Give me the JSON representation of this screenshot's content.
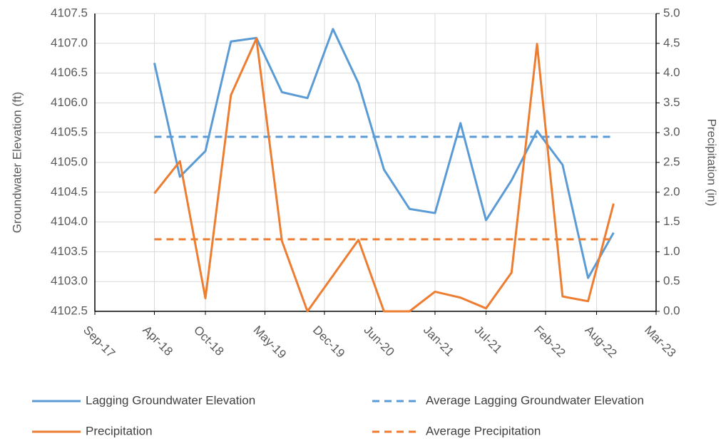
{
  "chart_data": {
    "type": "line",
    "y_label": "Groundwater Elevation (ft)",
    "y2_label": "Precipitation (in)",
    "x": [
      "2018-04",
      "2018-07",
      "2018-10",
      "2019-01",
      "2019-04",
      "2019-07",
      "2019-10",
      "2020-01",
      "2020-04",
      "2020-07",
      "2020-10",
      "2021-01",
      "2021-04",
      "2021-07",
      "2021-10",
      "2022-01",
      "2022-04",
      "2022-07",
      "2022-10"
    ],
    "xlim": [
      "2017-09",
      "2023-03"
    ],
    "xticks": [
      {
        "value": "2017-09",
        "label": "Sep-17"
      },
      {
        "value": "2018-04",
        "label": "Apr-18"
      },
      {
        "value": "2018-10",
        "label": "Oct-18"
      },
      {
        "value": "2019-05",
        "label": "May-19"
      },
      {
        "value": "2019-12",
        "label": "Dec-19"
      },
      {
        "value": "2020-06",
        "label": "Jun-20"
      },
      {
        "value": "2021-01",
        "label": "Jan-21"
      },
      {
        "value": "2021-07",
        "label": "Jul-21"
      },
      {
        "value": "2022-02",
        "label": "Feb-22"
      },
      {
        "value": "2022-08",
        "label": "Aug-22"
      },
      {
        "value": "2023-03",
        "label": "Mar-23"
      }
    ],
    "ylim": [
      4102.5,
      4107.5
    ],
    "yticks": [
      {
        "value": 4102.5,
        "label": "4102.5"
      },
      {
        "value": 4103,
        "label": "4103.0"
      },
      {
        "value": 4103.5,
        "label": "4103.5"
      },
      {
        "value": 4104,
        "label": "4104.0"
      },
      {
        "value": 4104.5,
        "label": "4104.5"
      },
      {
        "value": 4105,
        "label": "4105.0"
      },
      {
        "value": 4105.5,
        "label": "4105.5"
      },
      {
        "value": 4106,
        "label": "4106.0"
      },
      {
        "value": 4106.5,
        "label": "4106.5"
      },
      {
        "value": 4107,
        "label": "4107.0"
      },
      {
        "value": 4107.5,
        "label": "4107.5"
      }
    ],
    "y2lim": [
      0,
      5
    ],
    "y2ticks": [
      {
        "value": 0,
        "label": "0.0"
      },
      {
        "value": 0.5,
        "label": "0.5"
      },
      {
        "value": 1,
        "label": "1.0"
      },
      {
        "value": 1.5,
        "label": "1.5"
      },
      {
        "value": 2,
        "label": "2.0"
      },
      {
        "value": 2.5,
        "label": "2.5"
      },
      {
        "value": 3,
        "label": "3.0"
      },
      {
        "value": 3.5,
        "label": "3.5"
      },
      {
        "value": 4,
        "label": "4.0"
      },
      {
        "value": 4.5,
        "label": "4.5"
      },
      {
        "value": 5,
        "label": "5.0"
      }
    ],
    "grid": true,
    "series": [
      {
        "name": "Lagging Groundwater Elevation",
        "color": "#5b9bd5",
        "dashed": false,
        "axis": "y",
        "values": [
          4106.67,
          4104.76,
          4105.19,
          4107.03,
          4107.09,
          4106.18,
          4106.08,
          4107.24,
          4106.33,
          4104.88,
          4104.22,
          4104.15,
          4105.66,
          4104.03,
          4104.7,
          4105.53,
          4104.96,
          4103.06,
          4103.82
        ]
      },
      {
        "name": "Average Lagging Groundwater Elevation",
        "color": "#5b9bd5",
        "dashed": true,
        "axis": "y",
        "values": [
          4105.43,
          4105.43,
          4105.43,
          4105.43,
          4105.43,
          4105.43,
          4105.43,
          4105.43,
          4105.43,
          4105.43,
          4105.43,
          4105.43,
          4105.43,
          4105.43,
          4105.43,
          4105.43,
          4105.43,
          4105.43,
          4105.43
        ]
      },
      {
        "name": "Precipitation",
        "color": "#ed7d31",
        "dashed": false,
        "axis": "y2",
        "values": [
          1.98,
          2.52,
          0.22,
          3.63,
          4.58,
          1.18,
          0,
          0.6,
          1.2,
          0,
          0,
          0.33,
          0.23,
          0.05,
          0.65,
          4.49,
          0.25,
          0.17,
          1.81
        ]
      },
      {
        "name": "Average Precipitation",
        "color": "#ed7d31",
        "dashed": true,
        "axis": "y2",
        "values": [
          1.21,
          1.21,
          1.21,
          1.21,
          1.21,
          1.21,
          1.21,
          1.21,
          1.21,
          1.21,
          1.21,
          1.21,
          1.21,
          1.21,
          1.21,
          1.21,
          1.21,
          1.21,
          1.21
        ]
      }
    ]
  }
}
